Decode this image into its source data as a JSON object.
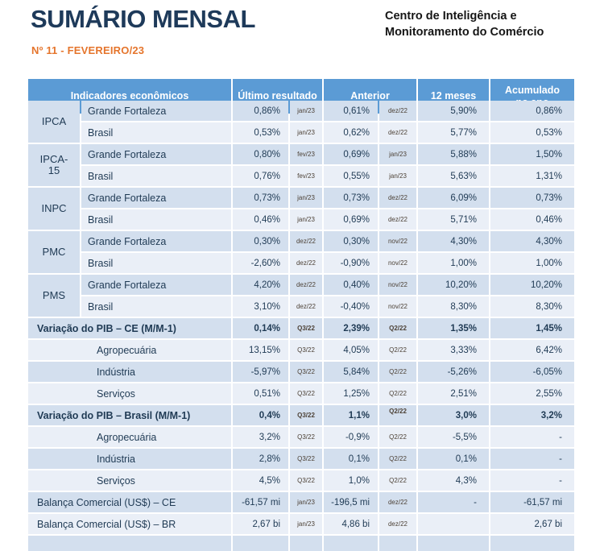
{
  "header": {
    "title": "SUMÁRIO MENSAL",
    "edition": "Nº 11 - FEVEREIRO/23",
    "org_line1": "Centro de Inteligência e",
    "org_line2": "Monitoramento do Comércio"
  },
  "colors": {
    "title_navy": "#1E3A5A",
    "accent_orange": "#E5752C",
    "table_header_bg": "#5B9BD5",
    "row_dark": "#D3DFEE",
    "row_light": "#EAEFF7",
    "cell_text": "#1F3A54",
    "date_text": "#4d4237"
  },
  "table": {
    "columns": {
      "indicators": "Indicadores econômicos",
      "last_result": "Último resultado",
      "previous": "Anterior",
      "twelve_months": "12 meses",
      "accumulated": "Acumulado\nno ano"
    },
    "rows": [
      {
        "group": "IPCA",
        "label": "Grande Fortaleza",
        "values": [
          "0,86%",
          "jan/23",
          "0,61%",
          "dez/22",
          "5,90%",
          "0,86%"
        ]
      },
      {
        "label": "Brasil",
        "values": [
          "0,53%",
          "jan/23",
          "0,62%",
          "dez/22",
          "5,77%",
          "0,53%"
        ]
      },
      {
        "group": "IPCA-\n15",
        "label": "Grande Fortaleza",
        "values": [
          "0,80%",
          "fev/23",
          "0,69%",
          "jan/23",
          "5,88%",
          "1,50%"
        ]
      },
      {
        "label": "Brasil",
        "values": [
          "0,76%",
          "fev/23",
          "0,55%",
          "jan/23",
          "5,63%",
          "1,31%"
        ]
      },
      {
        "group": "INPC",
        "label": "Grande Fortaleza",
        "values": [
          "0,73%",
          "jan/23",
          "0,73%",
          "dez/22",
          "6,09%",
          "0,73%"
        ]
      },
      {
        "label": "Brasil",
        "values": [
          "0,46%",
          "jan/23",
          "0,69%",
          "dez/22",
          "5,71%",
          "0,46%"
        ]
      },
      {
        "group": "PMC",
        "label": "Grande Fortaleza",
        "values": [
          "0,30%",
          "dez/22",
          "0,30%",
          "nov/22",
          "4,30%",
          "4,30%"
        ]
      },
      {
        "label": "Brasil",
        "values": [
          "-2,60%",
          "dez/22",
          "-0,90%",
          "nov/22",
          "1,00%",
          "1,00%"
        ]
      },
      {
        "group": "PMS",
        "label": "Grande Fortaleza",
        "values": [
          "4,20%",
          "dez/22",
          "0,40%",
          "nov/22",
          "10,20%",
          "10,20%"
        ]
      },
      {
        "label": "Brasil",
        "values": [
          "3,10%",
          "dez/22",
          "-0,40%",
          "nov/22",
          "8,30%",
          "8,30%"
        ]
      },
      {
        "label": "Variação do PIB – CE (M/M-1)",
        "section": true,
        "bold": true,
        "values": [
          "0,14%",
          "Q3/22",
          "2,39%",
          "Q2/22",
          "1,35%",
          "1,45%"
        ]
      },
      {
        "label": "Agropecuária",
        "section": true,
        "indent": true,
        "values": [
          "13,15%",
          "Q3/22",
          "4,05%",
          "Q2/22",
          "3,33%",
          "6,42%"
        ]
      },
      {
        "label": "Indústria",
        "section": true,
        "indent": true,
        "values": [
          "-5,97%",
          "Q3/22",
          "5,84%",
          "Q2/22",
          "-5,26%",
          "-6,05%"
        ]
      },
      {
        "label": "Serviços",
        "section": true,
        "indent": true,
        "values": [
          "0,51%",
          "Q3/22",
          "1,25%",
          "Q2/22",
          "2,51%",
          "2,55%"
        ]
      },
      {
        "label": "Variação do PIB – Brasil (M/M-1)",
        "section": true,
        "bold": true,
        "super_anterior_date": true,
        "values": [
          "0,4%",
          "Q3/22",
          "1,1%",
          "Q2/22",
          "3,0%",
          "3,2%"
        ]
      },
      {
        "label": "Agropecuária",
        "section": true,
        "indent": true,
        "values": [
          "3,2%",
          "Q3/22",
          "-0,9%",
          "Q2/22",
          "-5,5%",
          "-"
        ]
      },
      {
        "label": "Indústria",
        "section": true,
        "indent": true,
        "values": [
          "2,8%",
          "Q3/22",
          "0,1%",
          "Q2/22",
          "0,1%",
          "-"
        ]
      },
      {
        "label": "Serviços",
        "section": true,
        "indent": true,
        "values": [
          "4,5%",
          "Q3/22",
          "1,0%",
          "Q2/22",
          "4,3%",
          "-"
        ]
      },
      {
        "label": "Balança Comercial (US$) – CE",
        "section": true,
        "values": [
          "-61,57 mi",
          "jan/23",
          "-196,5 mi",
          "dez/22",
          "-",
          "-61,57 mi"
        ]
      },
      {
        "label": "Balança Comercial (US$) – BR",
        "section": true,
        "values": [
          "2,67 bi",
          "jan/23",
          "4,86 bi",
          "dez/22",
          "",
          "2,67 bi"
        ]
      },
      {
        "label": "",
        "section": true,
        "values": [
          "",
          "",
          "",
          "",
          "",
          ""
        ]
      }
    ]
  }
}
